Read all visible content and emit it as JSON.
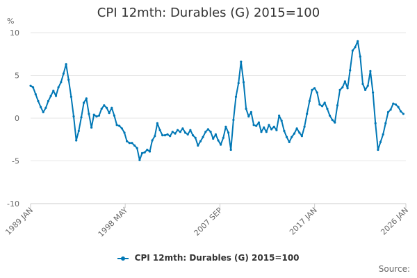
{
  "chart_data": {
    "type": "line",
    "title": "CPI 12mth: Durables (G) 2015=100",
    "ylabel": "%",
    "ylim": [
      -10,
      10
    ],
    "yticks": [
      10,
      5,
      0,
      -5,
      -10
    ],
    "xlim": [
      1989.0,
      2026.0
    ],
    "xticks": [
      {
        "label": "1989 JAN",
        "t": 1989.0
      },
      {
        "label": "1998 MAY",
        "t": 1998.33
      },
      {
        "label": "2007 SEP",
        "t": 2007.67
      },
      {
        "label": "2017 JAN",
        "t": 2017.0
      },
      {
        "label": "2026 JAN",
        "t": 2026.0
      }
    ],
    "legend": "bottom-center",
    "series": [
      {
        "name": "CPI 12mth: Durables (G) 2015=100",
        "color": "#0077b5",
        "points": [
          [
            1989.0,
            3.8
          ],
          [
            1989.25,
            3.6
          ],
          [
            1989.5,
            2.8
          ],
          [
            1989.75,
            2.0
          ],
          [
            1990.0,
            1.3
          ],
          [
            1990.25,
            0.7
          ],
          [
            1990.5,
            1.2
          ],
          [
            1990.75,
            2.0
          ],
          [
            1991.0,
            2.6
          ],
          [
            1991.25,
            3.2
          ],
          [
            1991.5,
            2.6
          ],
          [
            1991.75,
            3.6
          ],
          [
            1992.0,
            4.2
          ],
          [
            1992.25,
            5.2
          ],
          [
            1992.5,
            6.3
          ],
          [
            1992.75,
            4.5
          ],
          [
            1993.0,
            2.5
          ],
          [
            1993.25,
            0.2
          ],
          [
            1993.5,
            -2.6
          ],
          [
            1993.75,
            -1.5
          ],
          [
            1994.0,
            0.1
          ],
          [
            1994.25,
            1.8
          ],
          [
            1994.5,
            2.3
          ],
          [
            1994.75,
            0.5
          ],
          [
            1995.0,
            -1.1
          ],
          [
            1995.25,
            0.4
          ],
          [
            1995.5,
            0.2
          ],
          [
            1995.75,
            0.3
          ],
          [
            1996.0,
            1.1
          ],
          [
            1996.25,
            1.5
          ],
          [
            1996.5,
            1.2
          ],
          [
            1996.75,
            0.6
          ],
          [
            1997.0,
            1.2
          ],
          [
            1997.25,
            0.3
          ],
          [
            1997.5,
            -0.8
          ],
          [
            1997.75,
            -0.9
          ],
          [
            1998.0,
            -1.2
          ],
          [
            1998.25,
            -1.7
          ],
          [
            1998.5,
            -2.7
          ],
          [
            1998.75,
            -2.9
          ],
          [
            1999.0,
            -2.9
          ],
          [
            1999.25,
            -3.2
          ],
          [
            1999.5,
            -3.5
          ],
          [
            1999.75,
            -4.9
          ],
          [
            2000.0,
            -4.1
          ],
          [
            2000.25,
            -4.0
          ],
          [
            2000.5,
            -3.7
          ],
          [
            2000.75,
            -3.9
          ],
          [
            2001.0,
            -2.6
          ],
          [
            2001.25,
            -2.1
          ],
          [
            2001.5,
            -0.6
          ],
          [
            2001.75,
            -1.4
          ],
          [
            2002.0,
            -2.0
          ],
          [
            2002.25,
            -2.0
          ],
          [
            2002.5,
            -1.9
          ],
          [
            2002.75,
            -2.1
          ],
          [
            2003.0,
            -1.6
          ],
          [
            2003.25,
            -1.8
          ],
          [
            2003.5,
            -1.4
          ],
          [
            2003.75,
            -1.6
          ],
          [
            2004.0,
            -1.2
          ],
          [
            2004.25,
            -1.7
          ],
          [
            2004.5,
            -1.9
          ],
          [
            2004.75,
            -1.4
          ],
          [
            2005.0,
            -2.0
          ],
          [
            2005.25,
            -2.3
          ],
          [
            2005.5,
            -3.2
          ],
          [
            2005.75,
            -2.7
          ],
          [
            2006.0,
            -2.2
          ],
          [
            2006.25,
            -1.6
          ],
          [
            2006.5,
            -1.3
          ],
          [
            2006.75,
            -1.6
          ],
          [
            2007.0,
            -2.4
          ],
          [
            2007.25,
            -1.9
          ],
          [
            2007.5,
            -2.6
          ],
          [
            2007.75,
            -3.1
          ],
          [
            2008.0,
            -2.3
          ],
          [
            2008.25,
            -1.0
          ],
          [
            2008.5,
            -1.7
          ],
          [
            2008.75,
            -3.7
          ],
          [
            2009.0,
            -0.2
          ],
          [
            2009.25,
            2.5
          ],
          [
            2009.5,
            4.1
          ],
          [
            2009.75,
            6.6
          ],
          [
            2010.0,
            4.2
          ],
          [
            2010.25,
            1.1
          ],
          [
            2010.5,
            0.2
          ],
          [
            2010.75,
            0.7
          ],
          [
            2011.0,
            -0.8
          ],
          [
            2011.25,
            -0.9
          ],
          [
            2011.5,
            -0.5
          ],
          [
            2011.75,
            -1.6
          ],
          [
            2012.0,
            -1.1
          ],
          [
            2012.25,
            -1.6
          ],
          [
            2012.5,
            -0.8
          ],
          [
            2012.75,
            -1.3
          ],
          [
            2013.0,
            -1.0
          ],
          [
            2013.25,
            -1.4
          ],
          [
            2013.5,
            0.3
          ],
          [
            2013.75,
            -0.3
          ],
          [
            2014.0,
            -1.5
          ],
          [
            2014.25,
            -2.2
          ],
          [
            2014.5,
            -2.8
          ],
          [
            2014.75,
            -2.2
          ],
          [
            2015.0,
            -1.8
          ],
          [
            2015.25,
            -1.2
          ],
          [
            2015.5,
            -1.7
          ],
          [
            2015.75,
            -2.1
          ],
          [
            2016.0,
            -1.0
          ],
          [
            2016.25,
            0.5
          ],
          [
            2016.5,
            2.0
          ],
          [
            2016.75,
            3.3
          ],
          [
            2017.0,
            3.5
          ],
          [
            2017.25,
            3.0
          ],
          [
            2017.5,
            1.6
          ],
          [
            2017.75,
            1.4
          ],
          [
            2018.0,
            1.8
          ],
          [
            2018.25,
            1.1
          ],
          [
            2018.5,
            0.3
          ],
          [
            2018.75,
            -0.2
          ],
          [
            2019.0,
            -0.5
          ],
          [
            2019.25,
            1.5
          ],
          [
            2019.5,
            3.3
          ],
          [
            2019.75,
            3.6
          ],
          [
            2020.0,
            4.3
          ],
          [
            2020.25,
            3.5
          ],
          [
            2020.5,
            5.6
          ],
          [
            2020.75,
            7.9
          ],
          [
            2021.0,
            8.3
          ],
          [
            2021.25,
            9.0
          ],
          [
            2021.5,
            7.2
          ],
          [
            2021.75,
            4.0
          ],
          [
            2022.0,
            3.3
          ],
          [
            2022.25,
            3.8
          ],
          [
            2022.5,
            5.5
          ],
          [
            2022.75,
            3.0
          ],
          [
            2023.0,
            -0.6
          ],
          [
            2023.25,
            -3.7
          ],
          [
            2023.5,
            -2.8
          ],
          [
            2023.75,
            -1.9
          ],
          [
            2024.0,
            -0.6
          ],
          [
            2024.25,
            0.7
          ],
          [
            2024.5,
            1.0
          ],
          [
            2024.75,
            1.7
          ],
          [
            2025.0,
            1.6
          ],
          [
            2025.25,
            1.3
          ],
          [
            2025.5,
            0.8
          ],
          [
            2025.75,
            0.5
          ]
        ]
      }
    ],
    "source_label": "Source:"
  }
}
